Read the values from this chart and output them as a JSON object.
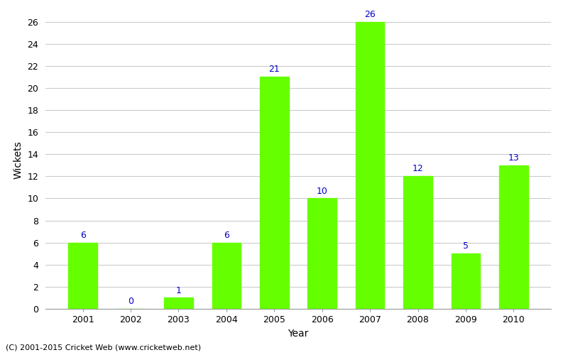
{
  "years": [
    "2001",
    "2002",
    "2003",
    "2004",
    "2005",
    "2006",
    "2007",
    "2008",
    "2009",
    "2010"
  ],
  "values": [
    6,
    0,
    1,
    6,
    21,
    10,
    26,
    12,
    5,
    13
  ],
  "bar_color": "#66ff00",
  "bar_edge_color": "#66ff00",
  "label_color": "#0000cc",
  "xlabel": "Year",
  "ylabel": "Wickets",
  "ylim": [
    0,
    27
  ],
  "yticks": [
    0,
    2,
    4,
    6,
    8,
    10,
    12,
    14,
    16,
    18,
    20,
    22,
    24,
    26
  ],
  "footnote": "(C) 2001-2015 Cricket Web (www.cricketweb.net)",
  "background_color": "#ffffff",
  "grid_color": "#cccccc",
  "label_fontsize": 9,
  "axis_label_fontsize": 10,
  "tick_fontsize": 9
}
